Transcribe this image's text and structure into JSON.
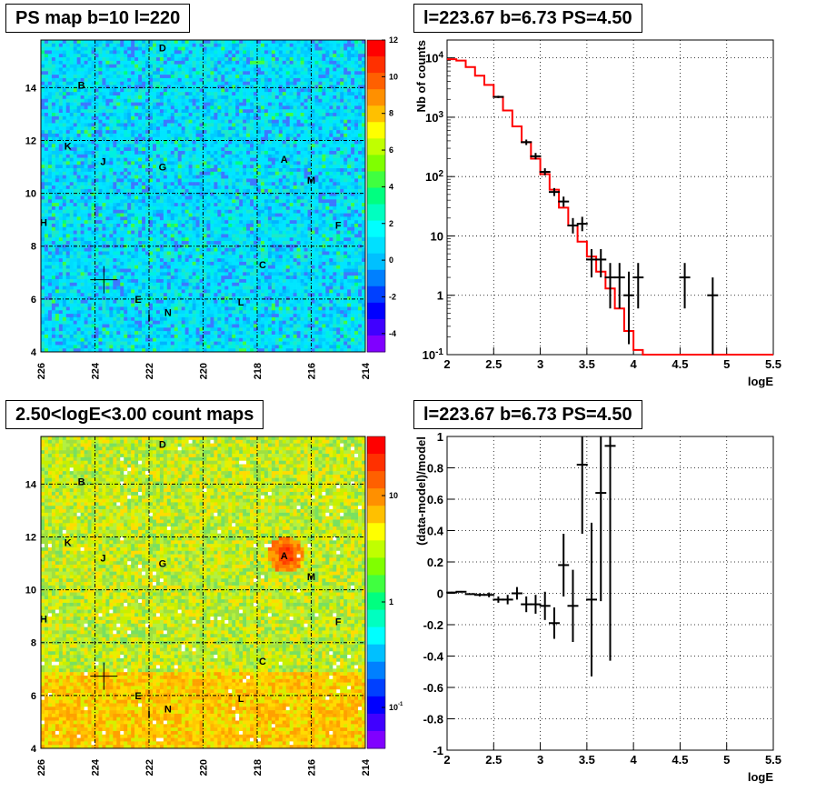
{
  "panels": {
    "tl_title": "PS map b=10 l=220",
    "tr_title": "l=223.67 b=6.73 PS=4.50",
    "bl_title": "2.50<logE<3.00 count maps",
    "br_title": "l=223.67 b=6.73 PS=4.50"
  },
  "colors": {
    "fit_line": "#ff0000",
    "data": "#000000",
    "ps_map_fill": "#00e6ff",
    "count_map_fill": "#b0f040"
  },
  "chart_data": [
    {
      "type": "heatmap",
      "title": "PS map b=10 l=220",
      "x_ticks": [
        "226",
        "224",
        "222",
        "220",
        "218",
        "216",
        "214"
      ],
      "y_ticks": [
        "4",
        "6",
        "8",
        "10",
        "12",
        "14"
      ],
      "xlim": [
        226,
        214
      ],
      "ylim": [
        4,
        15.8
      ],
      "colorbar_ticks": [
        "12",
        "10",
        "8",
        "6",
        "4",
        "2",
        "0",
        "-2",
        "-4"
      ],
      "colorbar_range": [
        -5,
        12
      ],
      "grid": true,
      "marker": {
        "l": 223.67,
        "b": 6.73
      },
      "source_labels": [
        {
          "label": "D",
          "l": 221.5,
          "b": 15.5
        },
        {
          "label": "B",
          "l": 224.5,
          "b": 14.1
        },
        {
          "label": "K",
          "l": 225.0,
          "b": 11.8
        },
        {
          "label": "J",
          "l": 223.7,
          "b": 11.2
        },
        {
          "label": "G",
          "l": 221.5,
          "b": 11.0
        },
        {
          "label": "A",
          "l": 217.0,
          "b": 11.3
        },
        {
          "label": "M",
          "l": 216.0,
          "b": 10.5
        },
        {
          "label": "H",
          "l": 225.9,
          "b": 8.9
        },
        {
          "label": "F",
          "l": 215.0,
          "b": 8.8
        },
        {
          "label": "C",
          "l": 217.8,
          "b": 7.3
        },
        {
          "label": "E",
          "l": 222.4,
          "b": 6.0
        },
        {
          "label": "I",
          "l": 222.0,
          "b": 5.3
        },
        {
          "label": "N",
          "l": 221.3,
          "b": 5.5
        },
        {
          "label": "L",
          "l": 218.6,
          "b": 5.9
        }
      ]
    },
    {
      "type": "line",
      "title": "l=223.67 b=6.73 PS=4.50",
      "xlabel": "logE",
      "ylabel": "Nb of counts",
      "xlim": [
        2,
        5.5
      ],
      "ylim": [
        0.1,
        20000
      ],
      "log_y": true,
      "grid": true,
      "x_ticks": [
        "2",
        "2.5",
        "3",
        "3.5",
        "4",
        "4.5",
        "5",
        "5.5"
      ],
      "y_ticks": [
        {
          "v": 10000,
          "label": "10^4"
        },
        {
          "v": 1000,
          "label": "10^3"
        },
        {
          "v": 100,
          "label": "10^2"
        },
        {
          "v": 10,
          "label": "10"
        },
        {
          "v": 1,
          "label": "1"
        },
        {
          "v": 0.1,
          "label": "10^-1"
        }
      ],
      "series": [
        {
          "kind": "step",
          "edges": [
            2.0,
            2.1,
            2.2,
            2.3,
            2.4,
            2.5,
            2.6,
            2.7,
            2.8,
            2.9,
            3.0,
            3.1,
            3.2,
            3.3,
            3.4,
            3.5,
            3.6,
            3.7,
            3.8,
            3.9,
            4.0,
            4.1,
            5.5
          ],
          "values": [
            9500,
            9000,
            7000,
            5000,
            3500,
            2200,
            1300,
            700,
            380,
            200,
            110,
            60,
            30,
            15,
            8,
            4.5,
            2.5,
            1.3,
            0.6,
            0.25,
            0.12,
            0.1
          ]
        },
        {
          "kind": "errorbar",
          "points": [
            {
              "x": 2.55,
              "y": 2200,
              "lo": 2100,
              "hi": 2300
            },
            {
              "x": 2.85,
              "y": 380,
              "lo": 340,
              "hi": 420
            },
            {
              "x": 2.95,
              "y": 220,
              "lo": 195,
              "hi": 250
            },
            {
              "x": 3.05,
              "y": 120,
              "lo": 105,
              "hi": 138
            },
            {
              "x": 3.15,
              "y": 55,
              "lo": 47,
              "hi": 64
            },
            {
              "x": 3.25,
              "y": 38,
              "lo": 31,
              "hi": 46
            },
            {
              "x": 3.35,
              "y": 15,
              "lo": 11,
              "hi": 20
            },
            {
              "x": 3.45,
              "y": 16,
              "lo": 12,
              "hi": 21
            },
            {
              "x": 3.55,
              "y": 4,
              "lo": 2,
              "hi": 6
            },
            {
              "x": 3.65,
              "y": 4,
              "lo": 2,
              "hi": 6
            },
            {
              "x": 3.75,
              "y": 2,
              "lo": 0.6,
              "hi": 3.5
            },
            {
              "x": 3.85,
              "y": 2,
              "lo": 0.6,
              "hi": 3.5
            },
            {
              "x": 3.95,
              "y": 1,
              "lo": 0.15,
              "hi": 2.5
            },
            {
              "x": 4.05,
              "y": 2,
              "lo": 0.6,
              "hi": 3.5
            },
            {
              "x": 4.55,
              "y": 2,
              "lo": 0.6,
              "hi": 3.5
            },
            {
              "x": 4.85,
              "y": 1,
              "lo": 0.1,
              "hi": 2
            }
          ]
        }
      ]
    },
    {
      "type": "heatmap",
      "title": "2.50<logE<3.00 count maps",
      "x_ticks": [
        "226",
        "224",
        "222",
        "220",
        "218",
        "216",
        "214"
      ],
      "y_ticks": [
        "4",
        "6",
        "8",
        "10",
        "12",
        "14"
      ],
      "xlim": [
        226,
        214
      ],
      "ylim": [
        4,
        15.8
      ],
      "log_z": true,
      "colorbar_ticks": [
        "10",
        "1",
        "10^-1"
      ],
      "grid": true,
      "marker": {
        "l": 223.67,
        "b": 6.73
      },
      "source_labels": [
        {
          "label": "D",
          "l": 221.5,
          "b": 15.5
        },
        {
          "label": "B",
          "l": 224.5,
          "b": 14.1
        },
        {
          "label": "K",
          "l": 225.0,
          "b": 11.8
        },
        {
          "label": "J",
          "l": 223.7,
          "b": 11.2
        },
        {
          "label": "G",
          "l": 221.5,
          "b": 11.0
        },
        {
          "label": "A",
          "l": 217.0,
          "b": 11.3
        },
        {
          "label": "M",
          "l": 216.0,
          "b": 10.5
        },
        {
          "label": "H",
          "l": 225.9,
          "b": 8.9
        },
        {
          "label": "F",
          "l": 215.0,
          "b": 8.8
        },
        {
          "label": "C",
          "l": 217.8,
          "b": 7.3
        },
        {
          "label": "E",
          "l": 222.4,
          "b": 6.0
        },
        {
          "label": "I",
          "l": 222.0,
          "b": 5.3
        },
        {
          "label": "N",
          "l": 221.3,
          "b": 5.5
        },
        {
          "label": "L",
          "l": 218.6,
          "b": 5.9
        }
      ]
    },
    {
      "type": "scatter",
      "title": "l=223.67 b=6.73 PS=4.50",
      "xlabel": "logE",
      "ylabel": "(data-model)/model",
      "xlim": [
        2,
        5.5
      ],
      "ylim": [
        -1,
        1
      ],
      "grid": true,
      "x_ticks": [
        "2",
        "2.5",
        "3",
        "3.5",
        "4",
        "4.5",
        "5",
        "5.5"
      ],
      "y_ticks": [
        "1",
        "0.8",
        "0.6",
        "0.4",
        "0.2",
        "0",
        "-0.2",
        "-0.4",
        "-0.6",
        "-0.8",
        "-1"
      ],
      "points": [
        {
          "x": 2.05,
          "y": 0.005,
          "lo": 0.0,
          "hi": 0.01
        },
        {
          "x": 2.15,
          "y": 0.01,
          "lo": 0.005,
          "hi": 0.015
        },
        {
          "x": 2.25,
          "y": -0.005,
          "lo": -0.01,
          "hi": 0.0
        },
        {
          "x": 2.35,
          "y": -0.01,
          "lo": -0.02,
          "hi": 0.0
        },
        {
          "x": 2.45,
          "y": -0.01,
          "lo": -0.025,
          "hi": 0.005
        },
        {
          "x": 2.55,
          "y": -0.04,
          "lo": -0.06,
          "hi": -0.02
        },
        {
          "x": 2.65,
          "y": -0.04,
          "lo": -0.07,
          "hi": -0.01
        },
        {
          "x": 2.75,
          "y": 0.0,
          "lo": -0.04,
          "hi": 0.04
        },
        {
          "x": 2.85,
          "y": -0.07,
          "lo": -0.12,
          "hi": -0.02
        },
        {
          "x": 2.95,
          "y": -0.07,
          "lo": -0.13,
          "hi": -0.01
        },
        {
          "x": 3.05,
          "y": -0.08,
          "lo": -0.17,
          "hi": 0.01
        },
        {
          "x": 3.15,
          "y": -0.19,
          "lo": -0.29,
          "hi": -0.09
        },
        {
          "x": 3.25,
          "y": 0.18,
          "lo": -0.02,
          "hi": 0.38
        },
        {
          "x": 3.35,
          "y": -0.08,
          "lo": -0.31,
          "hi": 0.15
        },
        {
          "x": 3.45,
          "y": 0.82,
          "lo": 0.38,
          "hi": 1.0
        },
        {
          "x": 3.55,
          "y": -0.04,
          "lo": -0.53,
          "hi": 0.45
        },
        {
          "x": 3.65,
          "y": 0.64,
          "lo": -0.05,
          "hi": 1.0
        },
        {
          "x": 3.75,
          "y": 0.94,
          "lo": -0.43,
          "hi": 1.0
        }
      ]
    }
  ]
}
